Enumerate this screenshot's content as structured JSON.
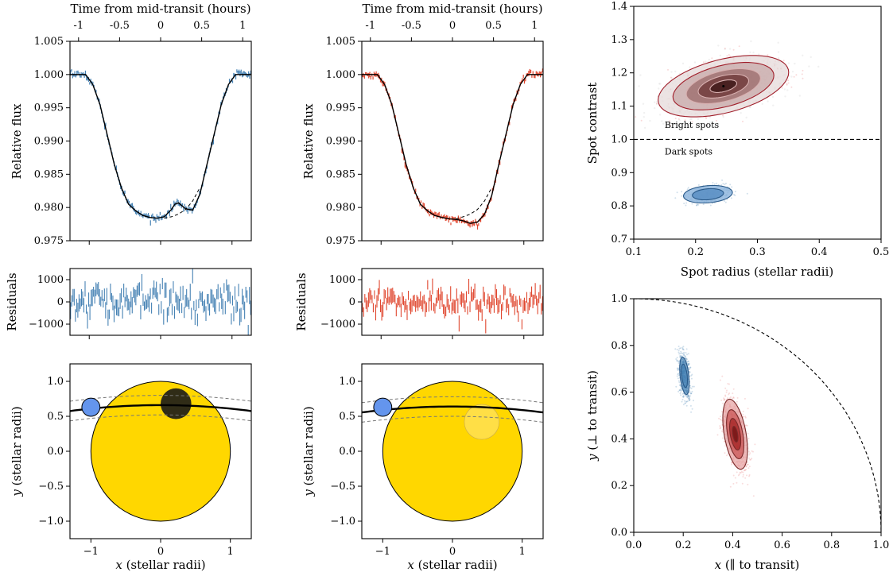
{
  "colors": {
    "blue": "#4682b4",
    "red": "#e0472f",
    "star": "#ffd700",
    "planet": "#6495ed",
    "contour_red": "#a01e2a",
    "cloud_red": "#e04040",
    "dark_spot": "#1a1a1a"
  },
  "chart_data": [
    {
      "id": "lc-left",
      "type": "line",
      "top_label": "Time from mid-transit (hours)",
      "top_ticks": [
        "-1",
        "-0.5",
        "0",
        "0.5",
        "1"
      ],
      "top_tick_values": [
        -1,
        -0.5,
        0,
        0.5,
        1
      ],
      "ylabel": "Relative flux",
      "xlim": [
        -1.27,
        1.27
      ],
      "ylim": [
        0.975,
        1.005
      ],
      "yticks": [
        "0.975",
        "0.980",
        "0.985",
        "0.990",
        "0.995",
        "1.000",
        "1.005"
      ],
      "ytick_values": [
        0.975,
        0.98,
        0.985,
        0.99,
        0.995,
        1.0,
        1.005
      ],
      "series": [
        {
          "style": "model-solid",
          "x": [
            -1.27,
            -1.05,
            -0.95,
            -0.85,
            -0.75,
            -0.65,
            -0.55,
            -0.45,
            -0.35,
            -0.25,
            -0.15,
            -0.05,
            0.05,
            0.15,
            0.2,
            0.25,
            0.35,
            0.45,
            0.55,
            0.65,
            0.75,
            0.85,
            0.95,
            1.05,
            1.27
          ],
          "y": [
            1.0,
            1.0,
            0.9985,
            0.9955,
            0.991,
            0.9865,
            0.983,
            0.9805,
            0.9795,
            0.9788,
            0.9785,
            0.9784,
            0.9786,
            0.9797,
            0.9805,
            0.9807,
            0.9798,
            0.9796,
            0.982,
            0.9865,
            0.991,
            0.9955,
            0.9985,
            1.0,
            1.0
          ]
        },
        {
          "style": "model-dashed",
          "x": [
            0.05,
            0.15,
            0.25,
            0.35,
            0.45,
            0.55
          ],
          "y": [
            0.9784,
            0.9786,
            0.979,
            0.9797,
            0.981,
            0.983
          ]
        }
      ],
      "noise_amplitude": 0.0003
    },
    {
      "id": "lc-right",
      "type": "line",
      "top_label": "Time from mid-transit (hours)",
      "top_ticks": [
        "-1",
        "-0.5",
        "0",
        "0.5",
        "1"
      ],
      "top_tick_values": [
        -1,
        -0.5,
        0,
        0.5,
        1
      ],
      "ylabel": "Relative flux",
      "xlim": [
        -1.27,
        1.27
      ],
      "ylim": [
        0.975,
        1.005
      ],
      "yticks": [
        "0.975",
        "0.980",
        "0.985",
        "0.990",
        "0.995",
        "1.000",
        "1.005"
      ],
      "ytick_values": [
        0.975,
        0.98,
        0.985,
        0.99,
        0.995,
        1.0,
        1.005
      ],
      "series": [
        {
          "style": "model-solid",
          "x": [
            -1.27,
            -1.05,
            -0.95,
            -0.85,
            -0.75,
            -0.65,
            -0.55,
            -0.45,
            -0.35,
            -0.25,
            -0.15,
            -0.05,
            0.05,
            0.15,
            0.25,
            0.35,
            0.45,
            0.55,
            0.65,
            0.75,
            0.85,
            0.95,
            1.05,
            1.27
          ],
          "y": [
            1.0,
            1.0,
            0.9985,
            0.9955,
            0.991,
            0.9865,
            0.983,
            0.9805,
            0.9795,
            0.9788,
            0.9785,
            0.9783,
            0.9782,
            0.978,
            0.9776,
            0.9778,
            0.979,
            0.9818,
            0.9865,
            0.991,
            0.9955,
            0.9985,
            1.0,
            1.0
          ]
        },
        {
          "style": "model-dashed",
          "x": [
            0.05,
            0.15,
            0.25,
            0.35,
            0.45,
            0.55
          ],
          "y": [
            0.9783,
            0.9786,
            0.979,
            0.9797,
            0.981,
            0.983
          ]
        }
      ],
      "noise_amplitude": 0.0003
    },
    {
      "id": "res-left",
      "type": "line",
      "ylabel": "Residuals",
      "xlim": [
        -1.27,
        1.27
      ],
      "ylim": [
        -1500,
        1500
      ],
      "yticks": [
        "−1000",
        "0",
        "1000"
      ],
      "ytick_values": [
        -1000,
        0,
        1000
      ],
      "residual_amplitude": 550,
      "errorbar_halfheight": 280
    },
    {
      "id": "res-right",
      "type": "line",
      "ylabel": "Residuals",
      "xlim": [
        -1.27,
        1.27
      ],
      "ylim": [
        -1500,
        1500
      ],
      "yticks": [
        "−1000",
        "0",
        "1000"
      ],
      "ytick_values": [
        -1000,
        0,
        1000
      ],
      "residual_amplitude": 450,
      "errorbar_halfheight": 260
    },
    {
      "id": "star-left",
      "type": "scatter",
      "xlabel_var": "x",
      "xlabel_rest": " (stellar radii)",
      "ylabel_var": "y",
      "ylabel_rest": " (stellar radii)",
      "xlim": [
        -1.3,
        1.3
      ],
      "ylim": [
        -1.25,
        1.25
      ],
      "xticks": [
        "−1",
        "0",
        "1"
      ],
      "xtick_values": [
        -1,
        0,
        1
      ],
      "yticks": [
        "−1.0",
        "−0.5",
        "0.0",
        "0.5",
        "1.0"
      ],
      "ytick_values": [
        -1.0,
        -0.5,
        0.0,
        0.5,
        1.0
      ],
      "star_radius": 1.0,
      "planet": {
        "x": -1.0,
        "y": 0.63,
        "r": 0.13
      },
      "chord_y": 0.66,
      "chord_halfwidth": 0.14,
      "spot": {
        "x": 0.22,
        "y": 0.68,
        "r": 0.22,
        "kind": "dark"
      }
    },
    {
      "id": "star-right",
      "type": "scatter",
      "xlabel_var": "x",
      "xlabel_rest": " (stellar radii)",
      "ylabel_var": "y",
      "ylabel_rest": " (stellar radii)",
      "xlim": [
        -1.3,
        1.3
      ],
      "ylim": [
        -1.25,
        1.25
      ],
      "xticks": [
        "−1",
        "0",
        "1"
      ],
      "xtick_values": [
        -1,
        0,
        1
      ],
      "yticks": [
        "−1.0",
        "−0.5",
        "0.0",
        "0.5",
        "1.0"
      ],
      "ytick_values": [
        -1.0,
        -0.5,
        0.0,
        0.5,
        1.0
      ],
      "star_radius": 1.0,
      "planet": {
        "x": -1.0,
        "y": 0.63,
        "r": 0.13
      },
      "chord_y": 0.64,
      "chord_halfwidth": 0.14,
      "spot": {
        "x": 0.42,
        "y": 0.42,
        "r": 0.25,
        "kind": "bright"
      }
    },
    {
      "id": "contrast",
      "type": "scatter",
      "xlabel": "Spot radius (stellar radii)",
      "ylabel": "Spot contrast",
      "xlim": [
        0.1,
        0.5
      ],
      "ylim": [
        0.7,
        1.4
      ],
      "xticks": [
        "0.1",
        "0.2",
        "0.3",
        "0.4",
        "0.5"
      ],
      "xtick_values": [
        0.1,
        0.2,
        0.3,
        0.4,
        0.5
      ],
      "yticks": [
        "0.7",
        "0.8",
        "0.9",
        "1.0",
        "1.1",
        "1.2",
        "1.3",
        "1.4"
      ],
      "ytick_values": [
        0.7,
        0.8,
        0.9,
        1.0,
        1.1,
        1.2,
        1.3,
        1.4
      ],
      "reference_line": 1.0,
      "annotations": [
        {
          "text": "Bright spots",
          "x": 0.15,
          "y": 1.035
        },
        {
          "text": "Dark spots",
          "x": 0.15,
          "y": 0.955
        }
      ],
      "distributions": [
        {
          "name": "bright",
          "color_key": "cloud_red",
          "center": [
            0.245,
            1.16
          ],
          "sigma": [
            0.048,
            0.042
          ],
          "rho": 0.45
        },
        {
          "name": "dark",
          "color_key": "blue",
          "center": [
            0.22,
            0.835
          ],
          "sigma": [
            0.018,
            0.012
          ],
          "rho": 0.2
        }
      ]
    },
    {
      "id": "position",
      "type": "scatter",
      "xlabel_var": "x",
      "xlabel_rest": " (∥ to transit)",
      "ylabel_var": "y",
      "ylabel_rest": " (⊥ to transit)",
      "xlim": [
        0.0,
        1.0
      ],
      "ylim": [
        0.0,
        1.0
      ],
      "xticks": [
        "0.0",
        "0.2",
        "0.4",
        "0.6",
        "0.8",
        "1.0"
      ],
      "xtick_values": [
        0.0,
        0.2,
        0.4,
        0.6,
        0.8,
        1.0
      ],
      "yticks": [
        "0.0",
        "0.2",
        "0.4",
        "0.6",
        "0.8",
        "1.0"
      ],
      "ytick_values": [
        0.0,
        0.2,
        0.4,
        0.6,
        0.8,
        1.0
      ],
      "limb_radius": 1.0,
      "distributions": [
        {
          "name": "dark",
          "color_key": "blue",
          "center": [
            0.205,
            0.67
          ],
          "sigma": [
            0.012,
            0.05
          ],
          "rho": -0.4
        },
        {
          "name": "bright",
          "color_key": "cloud_red",
          "center": [
            0.41,
            0.42
          ],
          "sigma": [
            0.025,
            0.075
          ],
          "rho": -0.45
        }
      ]
    }
  ]
}
